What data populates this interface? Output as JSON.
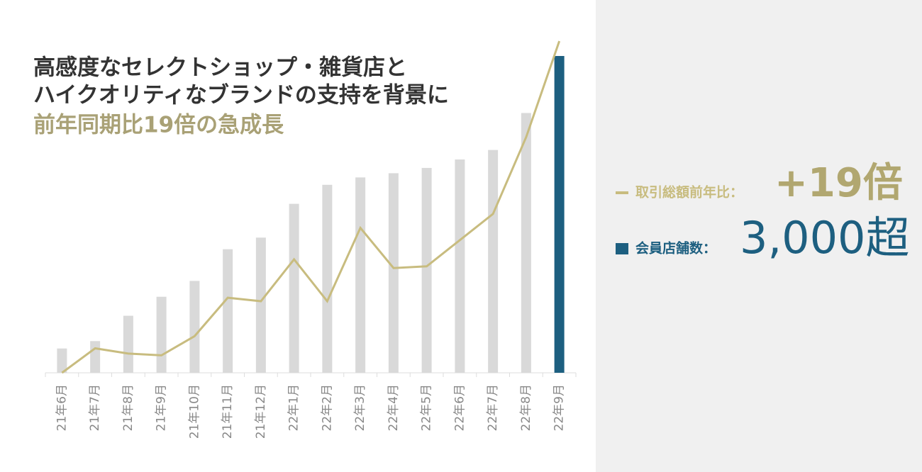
{
  "chart_data": {
    "type": "bar",
    "title_lines": [
      "高感度なセレクトショップ・雑貨店と",
      "ハイクオリティなブランドの支持を背景に"
    ],
    "title_highlight": "前年同期比19倍の急成長",
    "categories": [
      "21年6月",
      "21年7月",
      "21年8月",
      "21年9月",
      "21年10月",
      "21年11月",
      "21年12月",
      "22年1月",
      "22年2月",
      "22年3月",
      "22年4月",
      "22年5月",
      "22年6月",
      "22年7月",
      "22年8月",
      "22年9月"
    ],
    "ylim": [
      0,
      3000
    ],
    "y2lim": [
      0,
      19
    ],
    "series": [
      {
        "name": "取引総額前年比：",
        "type": "line",
        "axis": "y2",
        "color": "#c8bc7f",
        "headline": "+19倍",
        "values": [
          0,
          1.4,
          1.1,
          1.0,
          2.1,
          4.3,
          4.1,
          6.5,
          4.1,
          8.3,
          6.0,
          6.1,
          7.6,
          9.1,
          13.5,
          19
        ]
      },
      {
        "name": "会員店舗数：",
        "type": "bar",
        "color": "#1d5f80",
        "headline": "3,000超",
        "colors": [
          "#d9d9d9",
          "#d9d9d9",
          "#d9d9d9",
          "#d9d9d9",
          "#d9d9d9",
          "#d9d9d9",
          "#d9d9d9",
          "#d9d9d9",
          "#d9d9d9",
          "#d9d9d9",
          "#d9d9d9",
          "#d9d9d9",
          "#d9d9d9",
          "#d9d9d9",
          "#d9d9d9",
          "#1d5f80"
        ],
        "values": [
          230,
          300,
          540,
          720,
          870,
          1170,
          1280,
          1600,
          1780,
          1850,
          1890,
          1940,
          2020,
          2110,
          2460,
          3000
        ]
      }
    ]
  }
}
